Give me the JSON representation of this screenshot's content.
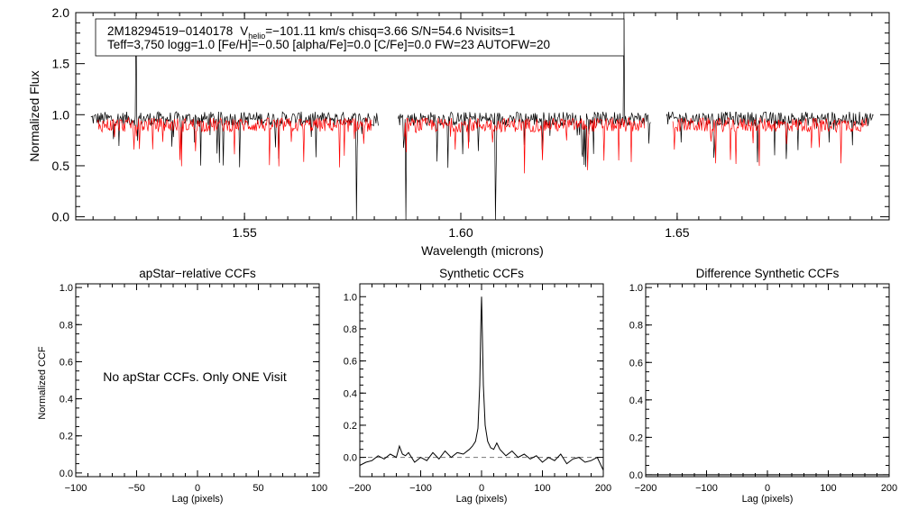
{
  "chart_data": [
    {
      "type": "line",
      "id": "spectrum",
      "xlabel": "Wavelength (microns)",
      "ylabel": "Normalized Flux",
      "xlim": [
        1.511,
        1.699
      ],
      "ylim": [
        -0.03,
        2.0
      ],
      "xticks": [
        "1.55",
        "1.60",
        "1.65"
      ],
      "yticks": [
        "0.0",
        "0.5",
        "1.0",
        "1.5",
        "2.0"
      ],
      "chip_ranges": [
        [
          1.5145,
          1.581
        ],
        [
          1.5855,
          1.644
        ],
        [
          1.6475,
          1.6955
        ]
      ],
      "series": [
        {
          "name": "Observed spectrum",
          "color": "#000000",
          "level": 0.93
        },
        {
          "name": "Best-fit synthetic",
          "color": "#ff0000",
          "level": 0.9
        }
      ],
      "legend": {
        "star": "2M18294519−0140178",
        "vhelio_sym": "V",
        "vhelio_sub": "helio",
        "vhelio_val": "=−101.11 km/s  chisq=3.66  S/N=54.6  Nvisits=1",
        "params": "Teff=3,750 logg=1.0 [Fe/H]=−0.50 [alpha/Fe]=0.0 [C/Fe]=0.0 FW=23 AUTOFW=20"
      }
    },
    {
      "type": "line",
      "id": "apstar",
      "title": "apStar−relative CCFs",
      "xlabel": "Lag (pixels)",
      "ylabel": "Normalized CCF",
      "xlim": [
        -100,
        100
      ],
      "ylim": [
        -0.02,
        1.02
      ],
      "xticks": [
        "−100",
        "−50",
        "0",
        "50",
        "100"
      ],
      "yticks": [
        "0.0",
        "0.2",
        "0.4",
        "0.6",
        "0.8",
        "1.0"
      ],
      "annotation": "No apStar CCFs.  Only ONE Visit"
    },
    {
      "type": "line",
      "id": "synthetic",
      "title": "Synthetic CCFs",
      "xlabel": "Lag (pixels)",
      "xlim": [
        -200,
        200
      ],
      "ylim": [
        -0.12,
        1.08
      ],
      "xticks": [
        "−200",
        "−100",
        "0",
        "100",
        "200"
      ],
      "yticks": [
        "0.0",
        "0.2",
        "0.4",
        "0.6",
        "0.8",
        "1.0"
      ],
      "x": [
        -200,
        -190,
        -180,
        -170,
        -160,
        -150,
        -140,
        -135,
        -130,
        -125,
        -120,
        -110,
        -100,
        -90,
        -80,
        -70,
        -60,
        -50,
        -40,
        -30,
        -20,
        -15,
        -10,
        -6,
        -3,
        -1,
        0,
        1,
        3,
        6,
        10,
        15,
        20,
        25,
        30,
        40,
        50,
        60,
        70,
        80,
        90,
        100,
        110,
        120,
        130,
        140,
        150,
        160,
        170,
        180,
        190,
        195,
        200
      ],
      "values": [
        -0.05,
        -0.03,
        -0.02,
        0.01,
        -0.01,
        0.02,
        0.0,
        0.07,
        0.02,
        0.01,
        0.03,
        -0.03,
        0.0,
        -0.02,
        0.03,
        -0.01,
        0.04,
        0.0,
        0.03,
        0.02,
        0.05,
        0.07,
        0.1,
        0.18,
        0.45,
        0.85,
        1.0,
        0.82,
        0.45,
        0.2,
        0.1,
        0.06,
        0.05,
        0.09,
        0.05,
        0.01,
        0.04,
        0.0,
        0.02,
        -0.01,
        0.01,
        -0.03,
        0.0,
        -0.02,
        0.02,
        -0.04,
        -0.01,
        0.0,
        -0.03,
        -0.02,
        0.0,
        -0.04,
        -0.08
      ],
      "baseline": 0.0
    },
    {
      "type": "line",
      "id": "difference",
      "title": "Difference Synthetic CCFs",
      "xlabel": "Lag (pixels)",
      "xlim": [
        -200,
        200
      ],
      "ylim": [
        -0.01,
        1.02
      ],
      "xticks": [
        "−200",
        "−100",
        "0",
        "100",
        "200"
      ],
      "yticks": [
        "0.0",
        "0.2",
        "0.4",
        "0.6",
        "0.8",
        "1.0"
      ],
      "values": [
        0.0
      ]
    }
  ]
}
